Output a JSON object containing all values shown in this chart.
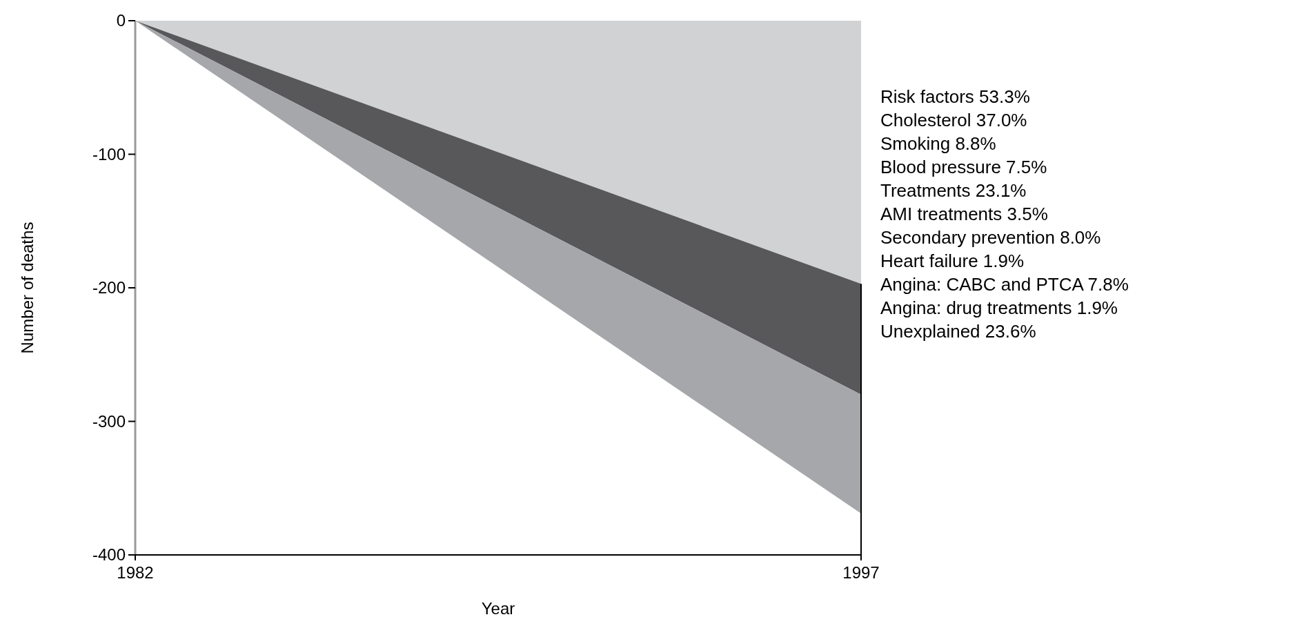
{
  "chart_data": {
    "type": "area",
    "xlabel": "Year",
    "ylabel": "Number of deaths",
    "x": [
      1982,
      1997
    ],
    "xlim": [
      1982,
      1997
    ],
    "xticks": [
      1982,
      1997
    ],
    "ylim": [
      -400,
      0
    ],
    "yticks": [
      0,
      -100,
      -200,
      -300,
      -400
    ],
    "stacked": true,
    "grid": false,
    "legend": false,
    "series": [
      {
        "color": "#d1d2d4",
        "values": [
          0,
          -197
        ]
      },
      {
        "color": "#58585a",
        "values": [
          0,
          -83
        ]
      },
      {
        "color": "#a6a7aa",
        "values": [
          0,
          -89
        ]
      }
    ],
    "annotations": [
      "Risk factors 53.3%",
      "Cholesterol 37.0%",
      "Smoking 8.8%",
      "Blood pressure 7.5%",
      "Treatments 23.1%",
      "AMI treatments 3.5%",
      "Secondary prevention 8.0%",
      "Heart failure 1.9%",
      "Angina: CABC and PTCA 7.8%",
      "Angina: drug treatments 1.9%",
      "Unexplained 23.6%"
    ]
  }
}
